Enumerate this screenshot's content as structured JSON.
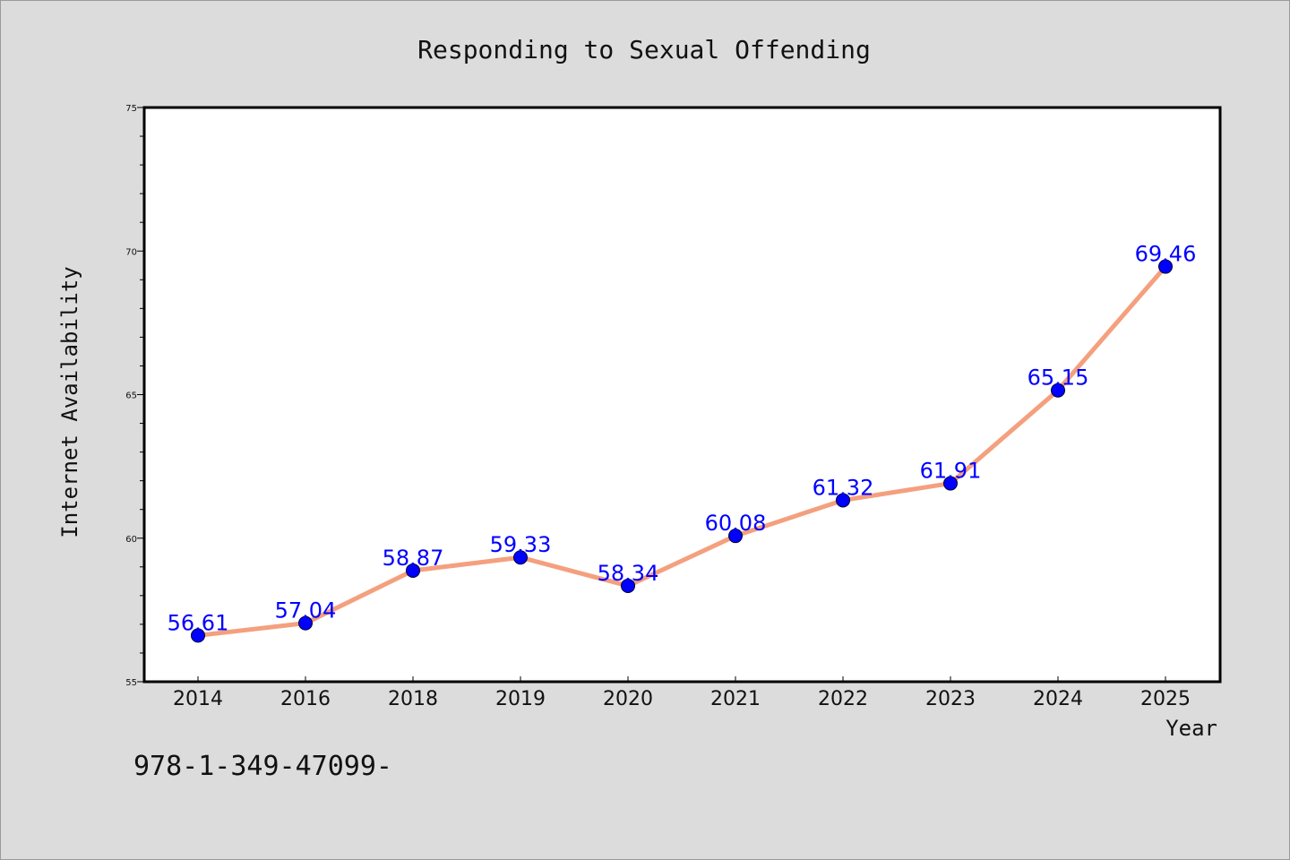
{
  "chart_data": {
    "type": "line",
    "title": "Responding to Sexual Offending",
    "xlabel": "Year",
    "ylabel": "Internet Availability",
    "categories": [
      "2014",
      "2016",
      "2018",
      "2019",
      "2020",
      "2021",
      "2022",
      "2023",
      "2024",
      "2025"
    ],
    "series": [
      {
        "values": [
          56.61,
          57.04,
          58.87,
          59.33,
          58.34,
          60.08,
          61.32,
          61.91,
          65.15,
          69.46
        ],
        "line_color": "#f4a07e",
        "marker_color": "#0000ff",
        "label_color": "#0000ff"
      }
    ],
    "ylim": [
      55,
      75
    ],
    "yticks": [
      "55",
      "60",
      "65",
      "70",
      "75"
    ],
    "grid": false,
    "legend": "none"
  },
  "footer": {
    "text": "978-1-349-47099-"
  }
}
